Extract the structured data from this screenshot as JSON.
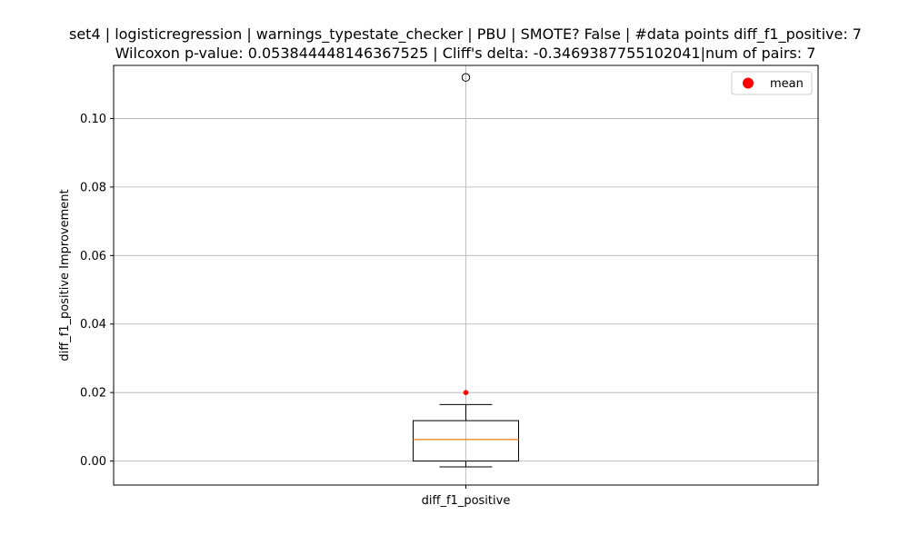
{
  "chart_data": {
    "type": "box",
    "title": [
      "set4 | logisticregression | warnings_typestate_checker | PBU | SMOTE? False | #data points diff_f1_positive: 7",
      "Wilcoxon p-value: 0.053844448146367525 | Cliff's delta: -0.3469387755102041|num of pairs: 7"
    ],
    "xlabel": "",
    "ylabel": "diff_f1_positive Improvement",
    "categories": [
      "diff_f1_positive"
    ],
    "ylim": [
      -0.007,
      0.1155
    ],
    "yticks": [
      0.0,
      0.02,
      0.04,
      0.06,
      0.08,
      0.1
    ],
    "ytick_labels": [
      "0.00",
      "0.02",
      "0.04",
      "0.06",
      "0.08",
      "0.10"
    ],
    "grid": true,
    "legend": {
      "placement": "top-right",
      "entries": [
        "mean"
      ]
    },
    "box": {
      "whisker_low": -0.0017,
      "q1": 0.0,
      "median": 0.0063,
      "q3": 0.0118,
      "whisker_high": 0.0165,
      "mean": 0.02,
      "outliers": [
        0.112
      ]
    },
    "colors": {
      "box": "#000000",
      "median": "#ff7f0e",
      "mean": "#ff0000",
      "grid": "#b0b0b0"
    }
  }
}
